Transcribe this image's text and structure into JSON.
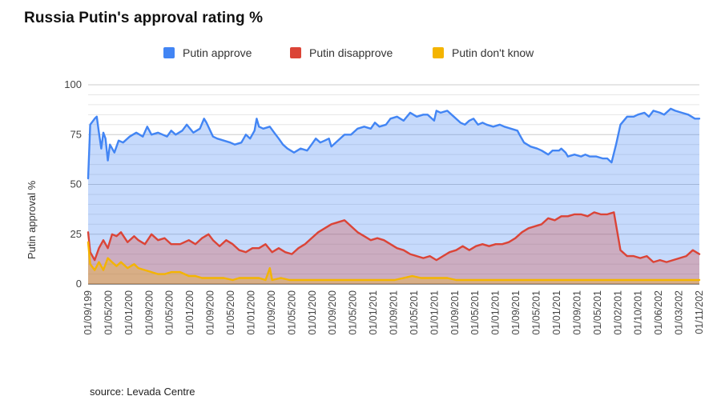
{
  "chart_data": {
    "type": "area",
    "title": "Russia Putin's approval rating %",
    "ylabel": "Putin approval %",
    "xlabel": "",
    "ylim": [
      0,
      100
    ],
    "yticks": [
      0,
      25,
      50,
      75,
      100
    ],
    "grid": true,
    "legend_position": "top-center",
    "x_range": [
      1999.67,
      2022.92
    ],
    "x_tick_labels": [
      "01/09/199",
      "01/05/200",
      "01/01/200",
      "01/09/200",
      "01/05/200",
      "01/01/200",
      "01/09/200",
      "01/05/200",
      "01/01/200",
      "01/09/200",
      "01/05/200",
      "01/01/200",
      "01/09/200",
      "01/05/200",
      "01/01/201",
      "01/09/201",
      "01/05/201",
      "01/01/201",
      "01/09/201",
      "01/05/201",
      "01/01/201",
      "01/09/201",
      "01/05/201",
      "01/01/201",
      "01/09/201",
      "01/05/201",
      "01/02/201",
      "01/10/201",
      "01/06/202",
      "01/03/202",
      "01/11/202"
    ],
    "series": [
      {
        "name": "Putin approve",
        "color": "#4285f4",
        "points": [
          [
            1999.67,
            53
          ],
          [
            1999.75,
            80
          ],
          [
            1999.92,
            83
          ],
          [
            2000.0,
            84
          ],
          [
            2000.08,
            76
          ],
          [
            2000.17,
            68
          ],
          [
            2000.25,
            76
          ],
          [
            2000.33,
            73
          ],
          [
            2000.42,
            62
          ],
          [
            2000.5,
            70
          ],
          [
            2000.67,
            66
          ],
          [
            2000.83,
            72
          ],
          [
            2001.0,
            71
          ],
          [
            2001.25,
            74
          ],
          [
            2001.5,
            76
          ],
          [
            2001.75,
            74
          ],
          [
            2001.92,
            79
          ],
          [
            2002.08,
            75
          ],
          [
            2002.33,
            76
          ],
          [
            2002.67,
            74
          ],
          [
            2002.83,
            77
          ],
          [
            2003.0,
            75
          ],
          [
            2003.25,
            77
          ],
          [
            2003.42,
            80
          ],
          [
            2003.67,
            76
          ],
          [
            2003.92,
            78
          ],
          [
            2004.08,
            83
          ],
          [
            2004.17,
            81
          ],
          [
            2004.42,
            74
          ],
          [
            2004.58,
            73
          ],
          [
            2004.83,
            72
          ],
          [
            2005.08,
            71
          ],
          [
            2005.25,
            70
          ],
          [
            2005.5,
            71
          ],
          [
            2005.67,
            75
          ],
          [
            2005.83,
            73
          ],
          [
            2006.0,
            77
          ],
          [
            2006.08,
            83
          ],
          [
            2006.17,
            79
          ],
          [
            2006.33,
            78
          ],
          [
            2006.58,
            79
          ],
          [
            2006.75,
            76
          ],
          [
            2006.92,
            73
          ],
          [
            2007.08,
            70
          ],
          [
            2007.25,
            68
          ],
          [
            2007.5,
            66
          ],
          [
            2007.75,
            68
          ],
          [
            2008.0,
            67
          ],
          [
            2008.17,
            70
          ],
          [
            2008.33,
            73
          ],
          [
            2008.5,
            71
          ],
          [
            2008.67,
            72
          ],
          [
            2008.83,
            73
          ],
          [
            2008.92,
            69
          ],
          [
            2009.17,
            72
          ],
          [
            2009.42,
            75
          ],
          [
            2009.67,
            75
          ],
          [
            2009.92,
            78
          ],
          [
            2010.17,
            79
          ],
          [
            2010.42,
            78
          ],
          [
            2010.58,
            81
          ],
          [
            2010.75,
            79
          ],
          [
            2011.0,
            80
          ],
          [
            2011.17,
            83
          ],
          [
            2011.42,
            84
          ],
          [
            2011.67,
            82
          ],
          [
            2011.92,
            86
          ],
          [
            2012.17,
            84
          ],
          [
            2012.42,
            85
          ],
          [
            2012.58,
            85
          ],
          [
            2012.83,
            82
          ],
          [
            2012.92,
            87
          ],
          [
            2013.08,
            86
          ],
          [
            2013.33,
            87
          ],
          [
            2013.58,
            84
          ],
          [
            2013.83,
            81
          ],
          [
            2014.0,
            80
          ],
          [
            2014.17,
            82
          ],
          [
            2014.33,
            83
          ],
          [
            2014.5,
            80
          ],
          [
            2014.67,
            81
          ],
          [
            2014.83,
            80
          ],
          [
            2015.08,
            79
          ],
          [
            2015.33,
            80
          ],
          [
            2015.5,
            79
          ],
          [
            2015.75,
            78
          ],
          [
            2016.0,
            77
          ],
          [
            2016.08,
            75
          ],
          [
            2016.25,
            71
          ],
          [
            2016.5,
            69
          ],
          [
            2016.75,
            68
          ],
          [
            2016.92,
            67
          ],
          [
            2017.17,
            65
          ],
          [
            2017.33,
            67
          ],
          [
            2017.58,
            67
          ],
          [
            2017.67,
            68
          ],
          [
            2017.83,
            66
          ],
          [
            2017.92,
            64
          ],
          [
            2018.17,
            65
          ],
          [
            2018.42,
            64
          ],
          [
            2018.58,
            65
          ],
          [
            2018.75,
            64
          ],
          [
            2019.0,
            64
          ],
          [
            2019.25,
            63
          ],
          [
            2019.42,
            63
          ],
          [
            2019.58,
            61
          ],
          [
            2019.75,
            70
          ],
          [
            2019.92,
            80
          ],
          [
            2020.17,
            84
          ],
          [
            2020.42,
            84
          ],
          [
            2020.58,
            85
          ],
          [
            2020.83,
            86
          ],
          [
            2021.0,
            84
          ],
          [
            2021.17,
            87
          ],
          [
            2021.42,
            86
          ],
          [
            2021.58,
            85
          ],
          [
            2021.83,
            88
          ],
          [
            2022.0,
            87
          ],
          [
            2022.25,
            86
          ],
          [
            2022.5,
            85
          ],
          [
            2022.75,
            83
          ],
          [
            2022.92,
            83
          ]
        ]
      },
      {
        "name": "Putin disapprove",
        "color": "#db4437",
        "points": [
          [
            1999.67,
            26
          ],
          [
            1999.75,
            16
          ],
          [
            1999.92,
            12
          ],
          [
            2000.08,
            18
          ],
          [
            2000.25,
            22
          ],
          [
            2000.42,
            18
          ],
          [
            2000.58,
            25
          ],
          [
            2000.75,
            24
          ],
          [
            2000.92,
            26
          ],
          [
            2001.17,
            21
          ],
          [
            2001.42,
            24
          ],
          [
            2001.58,
            22
          ],
          [
            2001.83,
            20
          ],
          [
            2002.08,
            25
          ],
          [
            2002.33,
            22
          ],
          [
            2002.58,
            23
          ],
          [
            2002.83,
            20
          ],
          [
            2003.17,
            20
          ],
          [
            2003.5,
            22
          ],
          [
            2003.75,
            20
          ],
          [
            2004.0,
            23
          ],
          [
            2004.25,
            25
          ],
          [
            2004.42,
            22
          ],
          [
            2004.67,
            19
          ],
          [
            2004.92,
            22
          ],
          [
            2005.17,
            20
          ],
          [
            2005.42,
            17
          ],
          [
            2005.67,
            16
          ],
          [
            2005.92,
            18
          ],
          [
            2006.17,
            18
          ],
          [
            2006.42,
            20
          ],
          [
            2006.67,
            16
          ],
          [
            2006.92,
            18
          ],
          [
            2007.17,
            16
          ],
          [
            2007.42,
            15
          ],
          [
            2007.67,
            18
          ],
          [
            2007.92,
            20
          ],
          [
            2008.17,
            23
          ],
          [
            2008.42,
            26
          ],
          [
            2008.67,
            28
          ],
          [
            2008.92,
            30
          ],
          [
            2009.17,
            31
          ],
          [
            2009.42,
            32
          ],
          [
            2009.67,
            29
          ],
          [
            2009.92,
            26
          ],
          [
            2010.17,
            24
          ],
          [
            2010.42,
            22
          ],
          [
            2010.67,
            23
          ],
          [
            2010.92,
            22
          ],
          [
            2011.17,
            20
          ],
          [
            2011.42,
            18
          ],
          [
            2011.67,
            17
          ],
          [
            2011.92,
            15
          ],
          [
            2012.17,
            14
          ],
          [
            2012.42,
            13
          ],
          [
            2012.67,
            14
          ],
          [
            2012.92,
            12
          ],
          [
            2013.17,
            14
          ],
          [
            2013.42,
            16
          ],
          [
            2013.67,
            17
          ],
          [
            2013.92,
            19
          ],
          [
            2014.17,
            17
          ],
          [
            2014.42,
            19
          ],
          [
            2014.67,
            20
          ],
          [
            2014.92,
            19
          ],
          [
            2015.17,
            20
          ],
          [
            2015.42,
            20
          ],
          [
            2015.67,
            21
          ],
          [
            2015.92,
            23
          ],
          [
            2016.17,
            26
          ],
          [
            2016.42,
            28
          ],
          [
            2016.67,
            29
          ],
          [
            2016.92,
            30
          ],
          [
            2017.17,
            33
          ],
          [
            2017.42,
            32
          ],
          [
            2017.67,
            34
          ],
          [
            2017.92,
            34
          ],
          [
            2018.17,
            35
          ],
          [
            2018.42,
            35
          ],
          [
            2018.67,
            34
          ],
          [
            2018.92,
            36
          ],
          [
            2019.17,
            35
          ],
          [
            2019.42,
            35
          ],
          [
            2019.67,
            36
          ],
          [
            2019.92,
            17
          ],
          [
            2020.17,
            14
          ],
          [
            2020.42,
            14
          ],
          [
            2020.67,
            13
          ],
          [
            2020.92,
            14
          ],
          [
            2021.17,
            11
          ],
          [
            2021.42,
            12
          ],
          [
            2021.67,
            11
          ],
          [
            2021.92,
            12
          ],
          [
            2022.17,
            13
          ],
          [
            2022.42,
            14
          ],
          [
            2022.67,
            17
          ],
          [
            2022.92,
            15
          ]
        ]
      },
      {
        "name": "Putin don't know",
        "color": "#f4b400",
        "points": [
          [
            1999.67,
            21
          ],
          [
            1999.75,
            10
          ],
          [
            1999.92,
            7
          ],
          [
            2000.08,
            11
          ],
          [
            2000.25,
            7
          ],
          [
            2000.42,
            13
          ],
          [
            2000.58,
            11
          ],
          [
            2000.75,
            9
          ],
          [
            2000.92,
            11
          ],
          [
            2001.17,
            8
          ],
          [
            2001.42,
            10
          ],
          [
            2001.58,
            8
          ],
          [
            2001.83,
            7
          ],
          [
            2002.08,
            6
          ],
          [
            2002.33,
            5
          ],
          [
            2002.58,
            5
          ],
          [
            2002.83,
            6
          ],
          [
            2003.17,
            6
          ],
          [
            2003.5,
            4
          ],
          [
            2003.75,
            4
          ],
          [
            2004.0,
            3
          ],
          [
            2004.25,
            3
          ],
          [
            2004.58,
            3
          ],
          [
            2004.83,
            3
          ],
          [
            2005.17,
            2
          ],
          [
            2005.42,
            3
          ],
          [
            2005.67,
            3
          ],
          [
            2005.92,
            3
          ],
          [
            2006.17,
            3
          ],
          [
            2006.42,
            2
          ],
          [
            2006.58,
            8
          ],
          [
            2006.67,
            2
          ],
          [
            2007.0,
            3
          ],
          [
            2007.33,
            2
          ],
          [
            2007.67,
            2
          ],
          [
            2008.0,
            2
          ],
          [
            2008.33,
            2
          ],
          [
            2008.67,
            2
          ],
          [
            2009.0,
            2
          ],
          [
            2009.33,
            2
          ],
          [
            2009.67,
            2
          ],
          [
            2010.0,
            2
          ],
          [
            2010.33,
            2
          ],
          [
            2010.67,
            2
          ],
          [
            2011.0,
            2
          ],
          [
            2011.33,
            2
          ],
          [
            2011.67,
            3
          ],
          [
            2012.0,
            4
          ],
          [
            2012.33,
            3
          ],
          [
            2012.67,
            3
          ],
          [
            2013.0,
            3
          ],
          [
            2013.33,
            3
          ],
          [
            2013.67,
            2
          ],
          [
            2014.0,
            2
          ],
          [
            2014.33,
            2
          ],
          [
            2014.67,
            2
          ],
          [
            2015.0,
            2
          ],
          [
            2015.33,
            2
          ],
          [
            2015.67,
            2
          ],
          [
            2016.0,
            2
          ],
          [
            2016.33,
            2
          ],
          [
            2016.67,
            2
          ],
          [
            2017.0,
            2
          ],
          [
            2017.33,
            2
          ],
          [
            2017.67,
            2
          ],
          [
            2018.0,
            2
          ],
          [
            2018.33,
            2
          ],
          [
            2018.67,
            2
          ],
          [
            2019.0,
            2
          ],
          [
            2019.33,
            2
          ],
          [
            2019.67,
            2
          ],
          [
            2020.0,
            2
          ],
          [
            2020.33,
            2
          ],
          [
            2020.67,
            2
          ],
          [
            2021.0,
            2
          ],
          [
            2021.33,
            2
          ],
          [
            2021.67,
            2
          ],
          [
            2022.0,
            2
          ],
          [
            2022.33,
            2
          ],
          [
            2022.67,
            2
          ],
          [
            2022.92,
            2
          ]
        ]
      }
    ]
  },
  "source_note": "source: Levada Centre"
}
